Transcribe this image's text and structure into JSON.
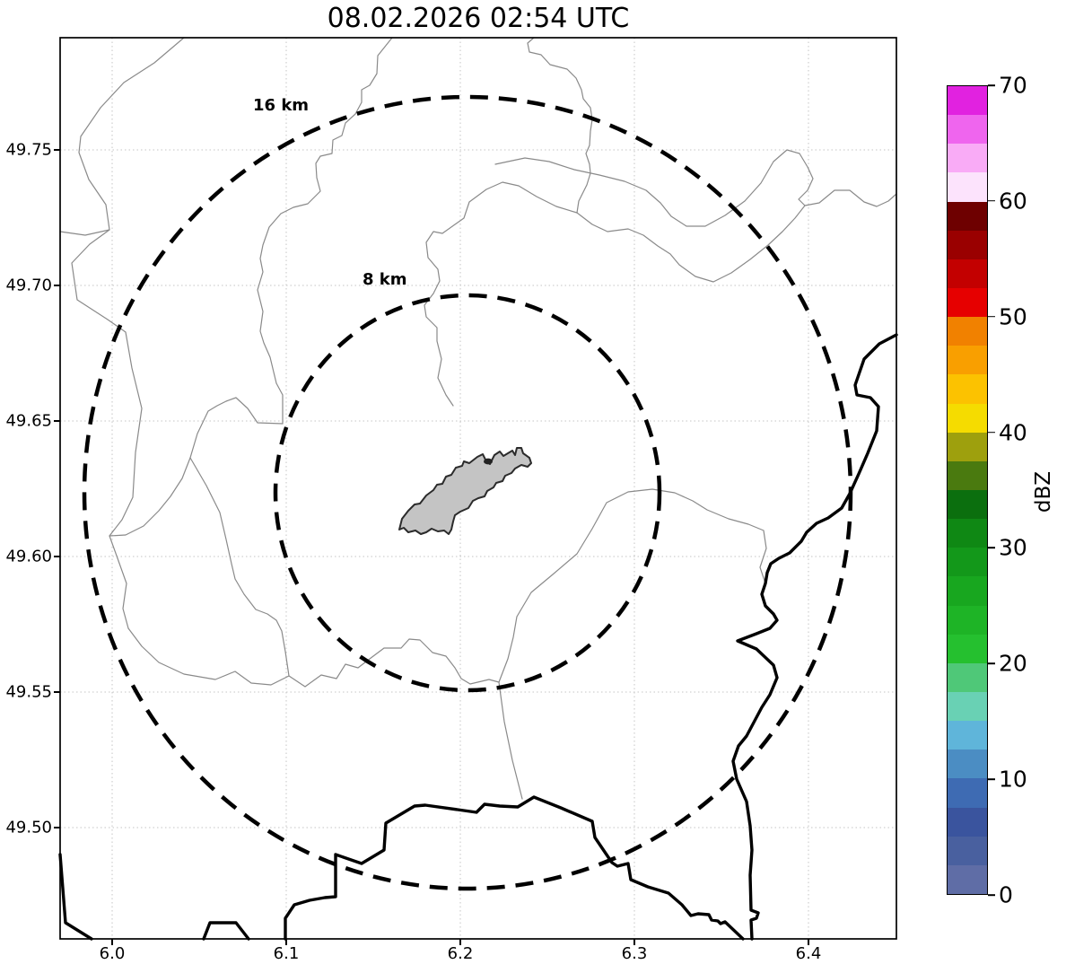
{
  "title": "08.02.2026 02:54 UTC",
  "map": {
    "x_axis": {
      "ticks": [
        "6.0",
        "6.1",
        "6.2",
        "6.3",
        "6.4"
      ]
    },
    "y_axis": {
      "ticks": [
        "49.75",
        "49.70",
        "49.65",
        "49.60",
        "49.55",
        "49.50"
      ]
    },
    "range_rings": [
      {
        "label": "16 km"
      },
      {
        "label": "8 km"
      }
    ],
    "city_area_color": "#c4c4c4",
    "boundary_line_color": "#8a8a8a",
    "border_river_color": "#000000"
  },
  "colorbar": {
    "label": "dBZ",
    "tick_labels": [
      "0",
      "10",
      "20",
      "30",
      "40",
      "50",
      "60",
      "70"
    ],
    "segment_colors": [
      "#5F6DA6",
      "#49609F",
      "#3A549E",
      "#3E6BB3",
      "#4B8DC3",
      "#5FB5DA",
      "#69D1B4",
      "#4FC878",
      "#25C02F",
      "#1EB426",
      "#18A71F",
      "#13981A",
      "#0F8814",
      "#0B6F0E",
      "#4A7A0F",
      "#9EA00D",
      "#F5DC00",
      "#FCC200",
      "#F99F00",
      "#F18100",
      "#E60000",
      "#C30000",
      "#9A0000",
      "#6E0000",
      "#FCE3FC",
      "#F9ABF6",
      "#EF65EE",
      "#E122E0"
    ]
  },
  "chart_data": {
    "type": "map",
    "title": "08.02.2026 02:54 UTC",
    "x_ticks": [
      6.0,
      6.1,
      6.2,
      6.3,
      6.4
    ],
    "y_ticks": [
      49.75,
      49.7,
      49.65,
      49.6,
      49.55,
      49.5
    ],
    "lon_range": [
      5.97,
      6.45
    ],
    "lat_range": [
      49.46,
      49.79
    ],
    "grid": "dotted",
    "range_rings_km": [
      8,
      16
    ],
    "ring_center": {
      "lon": 6.2,
      "lat": 49.62
    },
    "colorbar": {
      "label": "dBZ",
      "min": 0,
      "max": 70,
      "tick_step": 10,
      "n_segments": 28
    },
    "radar_echoes": "none visible (empty reflectivity field)"
  }
}
